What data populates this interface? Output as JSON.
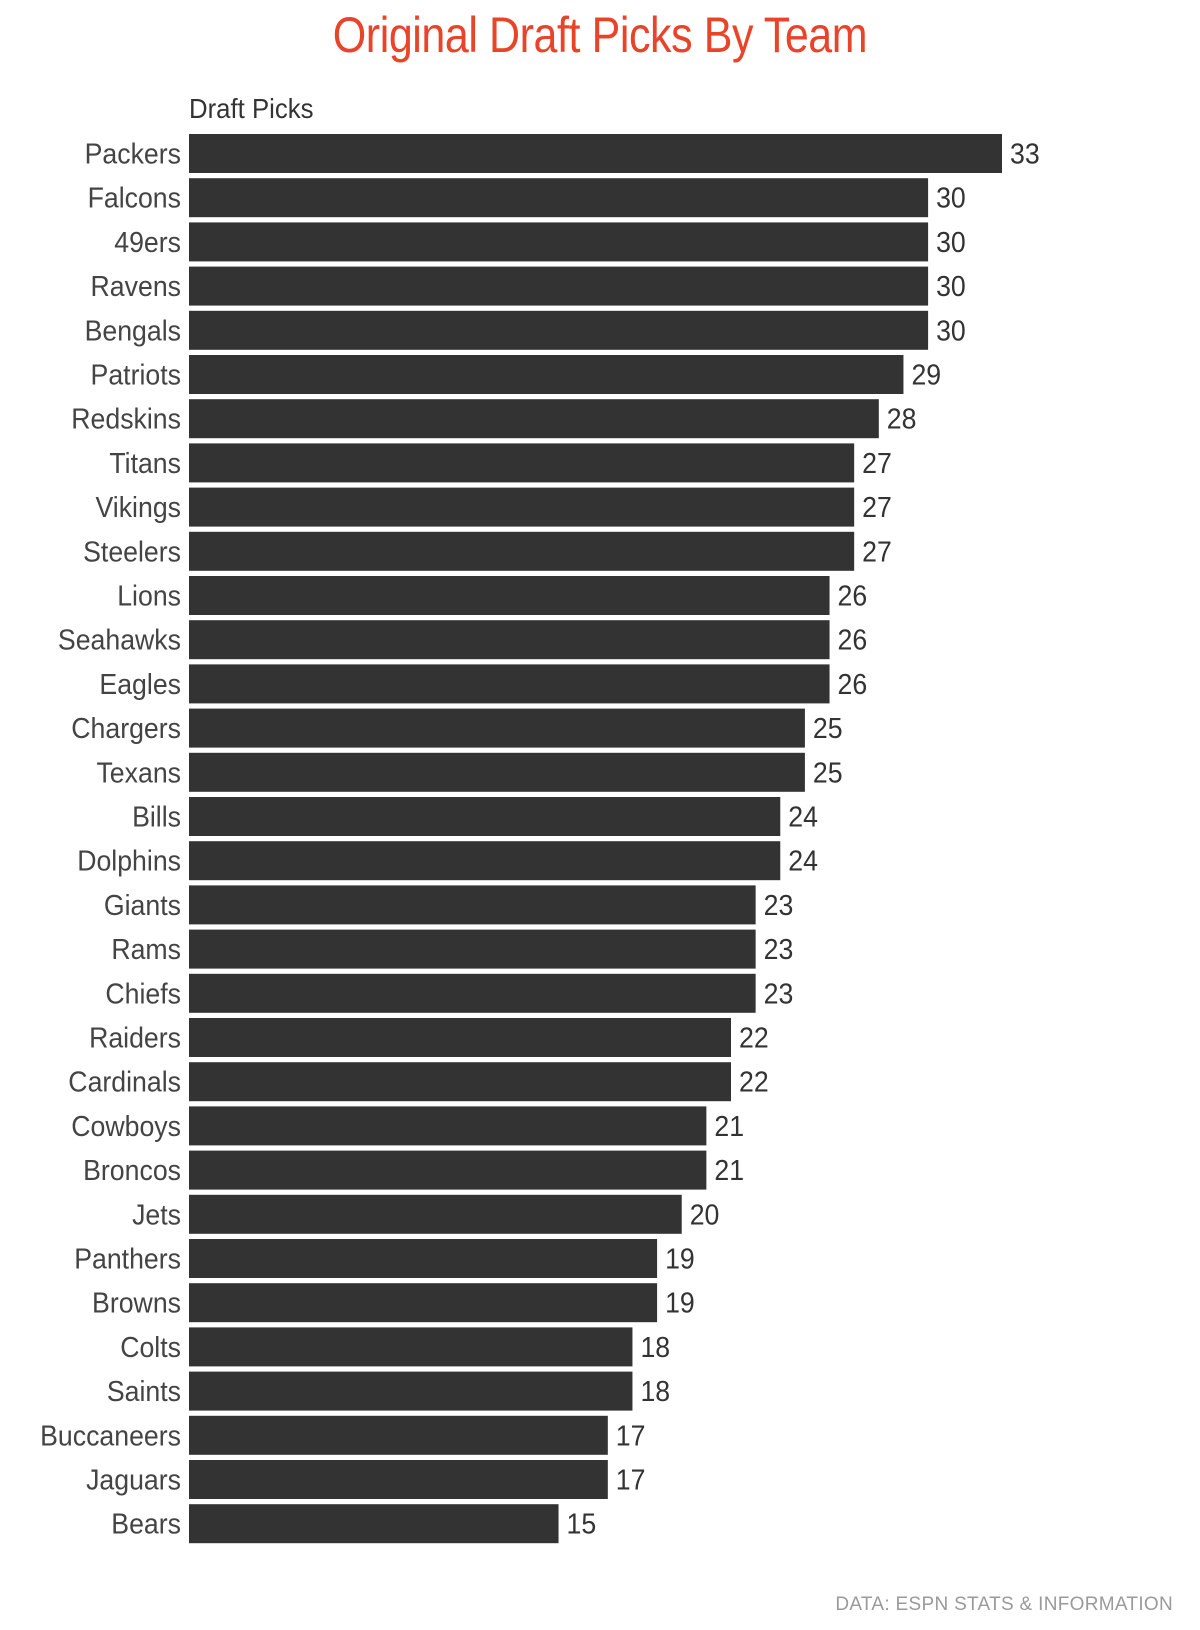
{
  "chart_data": {
    "type": "bar",
    "orientation": "horizontal",
    "title": "Original Draft Picks By Team",
    "xlabel": "Draft Picks",
    "ylabel": "",
    "categories": [
      "Packers",
      "Falcons",
      "49ers",
      "Ravens",
      "Bengals",
      "Patriots",
      "Redskins",
      "Titans",
      "Vikings",
      "Steelers",
      "Lions",
      "Seahawks",
      "Eagles",
      "Chargers",
      "Texans",
      "Bills",
      "Dolphins",
      "Giants",
      "Rams",
      "Chiefs",
      "Raiders",
      "Cardinals",
      "Cowboys",
      "Broncos",
      "Jets",
      "Panthers",
      "Browns",
      "Colts",
      "Saints",
      "Buccaneers",
      "Jaguars",
      "Bears"
    ],
    "values": [
      33,
      30,
      30,
      30,
      30,
      29,
      28,
      27,
      27,
      27,
      26,
      26,
      26,
      25,
      25,
      24,
      24,
      23,
      23,
      23,
      22,
      22,
      21,
      21,
      20,
      19,
      19,
      18,
      18,
      17,
      17,
      15
    ],
    "xlim": [
      0,
      33
    ],
    "grid": false,
    "data_labels": true,
    "colors": {
      "bar": "#333333",
      "title": "#e8442a",
      "label": "#444444",
      "footer": "#9a9a9a"
    }
  },
  "footer": "DATA: ESPN STATS & INFORMATION"
}
